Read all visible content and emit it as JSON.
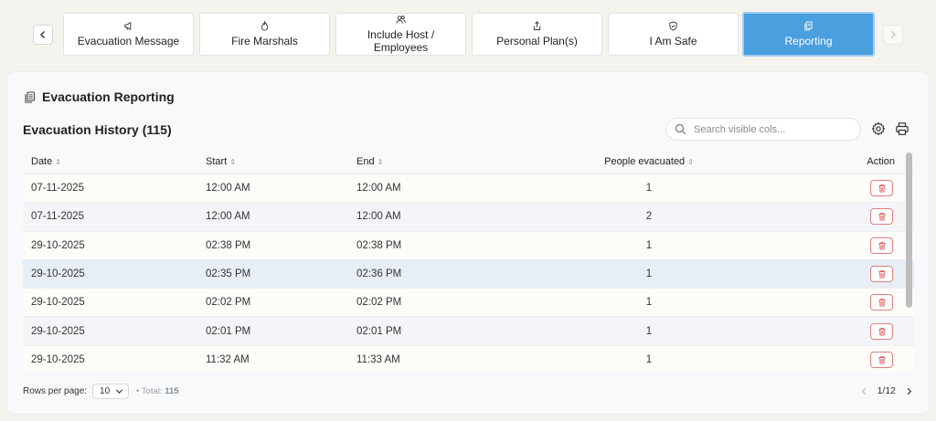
{
  "tabs": [
    {
      "label": "Evacuation Message",
      "icon": "megaphone-icon"
    },
    {
      "label": "Fire Marshals",
      "icon": "flame-icon"
    },
    {
      "label": "Include Host / Employees",
      "icon": "users-icon"
    },
    {
      "label": "Personal Plan(s)",
      "icon": "share-icon"
    },
    {
      "label": "I Am Safe",
      "icon": "shield-check-icon"
    },
    {
      "label": "Reporting",
      "icon": "copy-icon",
      "active": true
    }
  ],
  "card": {
    "title": "Evacuation Reporting",
    "history_title": "Evacuation History (115)"
  },
  "search": {
    "placeholder": "Search visible cols..."
  },
  "table": {
    "headers": {
      "date": "Date",
      "start": "Start",
      "end": "End",
      "people": "People evacuated",
      "action": "Action"
    },
    "rows": [
      {
        "date": "07-11-2025",
        "start": "12:00 AM",
        "end": "12:00 AM",
        "people": "1"
      },
      {
        "date": "07-11-2025",
        "start": "12:00 AM",
        "end": "12:00 AM",
        "people": "2"
      },
      {
        "date": "29-10-2025",
        "start": "02:38 PM",
        "end": "02:38 PM",
        "people": "1"
      },
      {
        "date": "29-10-2025",
        "start": "02:35 PM",
        "end": "02:36 PM",
        "people": "1"
      },
      {
        "date": "29-10-2025",
        "start": "02:02 PM",
        "end": "02:02 PM",
        "people": "1"
      },
      {
        "date": "29-10-2025",
        "start": "02:01 PM",
        "end": "02:01 PM",
        "people": "1"
      },
      {
        "date": "29-10-2025",
        "start": "11:32 AM",
        "end": "11:33 AM",
        "people": "1"
      }
    ]
  },
  "footer": {
    "rows_per_page_label": "Rows per page:",
    "rows_per_page_value": "10",
    "total_prefix": "• Total:",
    "total_value": "115",
    "page_indicator": "1/12"
  },
  "colors": {
    "accent": "#4a9fdf",
    "danger": "#e06060"
  }
}
